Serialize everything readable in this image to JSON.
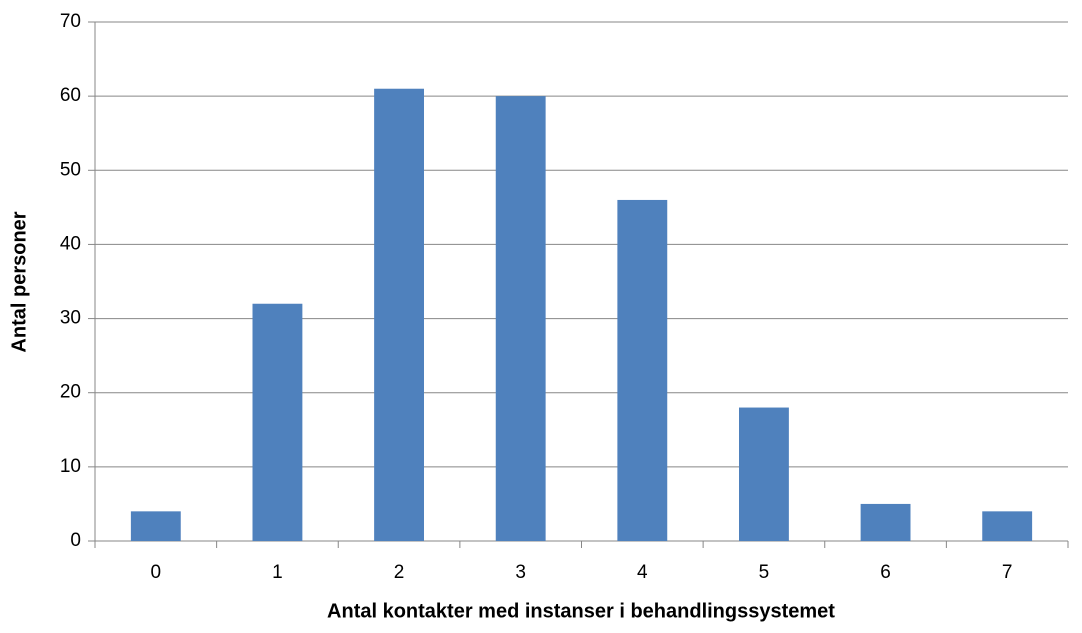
{
  "chart_data": {
    "type": "bar",
    "xlabel": "Antal kontakter med instanser i behandlingssystemet",
    "ylabel": "Antal personer",
    "categories": [
      "0",
      "1",
      "2",
      "3",
      "4",
      "5",
      "6",
      "7"
    ],
    "values": [
      4,
      32,
      61,
      60,
      46,
      18,
      5,
      4
    ],
    "color": "#4f81bd",
    "ylim": [
      0,
      70
    ],
    "yticks": [
      0,
      10,
      20,
      30,
      40,
      50,
      60,
      70
    ],
    "grid": true
  }
}
